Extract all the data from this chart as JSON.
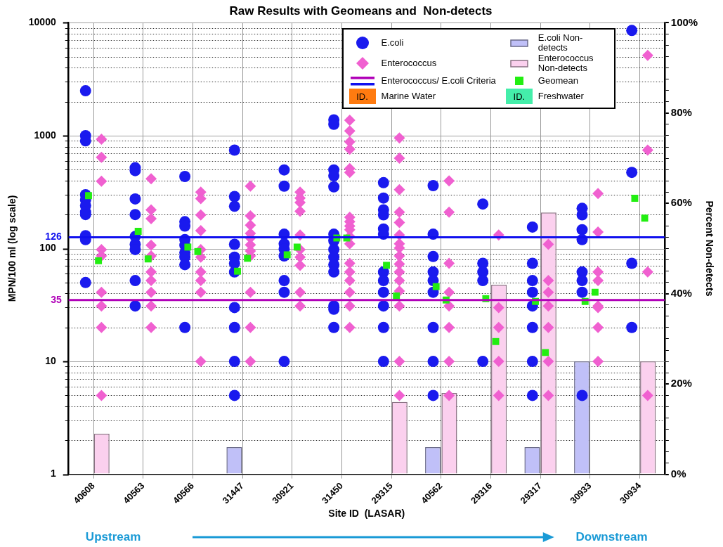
{
  "chart_data": {
    "type": "scatter",
    "title": "Raw Results with Geomeans and  Non-detects",
    "xlabel": "Site ID  (LASAR)",
    "ylabel": "MPN/100 ml (log scale)",
    "y2label": "Percent Non-detects",
    "categories": [
      "40608",
      "40563",
      "40566",
      "31447",
      "30921",
      "31450",
      "29315",
      "40562",
      "29316",
      "29317",
      "30933",
      "30934"
    ],
    "log": true,
    "grid": true,
    "legend": "top right",
    "ylim": [
      1,
      10000
    ],
    "yticks": [
      1,
      {
        "value": 2,
        "label": null
      },
      {
        "value": 3,
        "label": null
      },
      {
        "value": 4,
        "label": null
      },
      {
        "value": 5,
        "label": null
      },
      {
        "value": 6,
        "label": null
      },
      {
        "value": 7,
        "label": null
      },
      {
        "value": 8,
        "label": null
      },
      {
        "value": 9,
        "label": null
      },
      10,
      {
        "value": 20,
        "label": null
      },
      {
        "value": 30,
        "label": null
      },
      {
        "value": 40,
        "label": null
      },
      {
        "value": 50,
        "label": null
      },
      {
        "value": 60,
        "label": null
      },
      {
        "value": 70,
        "label": null
      },
      {
        "value": 80,
        "label": null
      },
      {
        "value": 90,
        "label": null
      },
      100,
      {
        "value": 200,
        "label": null
      },
      {
        "value": 300,
        "label": null
      },
      {
        "value": 400,
        "label": null
      },
      {
        "value": 500,
        "label": null
      },
      {
        "value": 600,
        "label": null
      },
      {
        "value": 700,
        "label": null
      },
      {
        "value": 800,
        "label": null
      },
      {
        "value": 900,
        "label": null
      },
      1000,
      {
        "value": 2000,
        "label": null
      },
      {
        "value": 3000,
        "label": null
      },
      {
        "value": 4000,
        "label": null
      },
      {
        "value": 5000,
        "label": null
      },
      {
        "value": 6000,
        "label": null
      },
      {
        "value": 7000,
        "label": null
      },
      {
        "value": 8000,
        "label": null
      },
      {
        "value": 9000,
        "label": null
      },
      10000
    ],
    "y2lim": [
      0,
      100
    ],
    "y2ticks": [
      {
        "value": 0,
        "label": "0%"
      },
      {
        "value": 2.5,
        "label": null
      },
      {
        "value": 5,
        "label": null
      },
      {
        "value": 7.5,
        "label": null
      },
      {
        "value": 10,
        "label": null
      },
      {
        "value": 12.5,
        "label": null
      },
      {
        "value": 15,
        "label": null
      },
      {
        "value": 17.5,
        "label": null
      },
      {
        "value": 20,
        "label": "20%"
      },
      {
        "value": 22.5,
        "label": null
      },
      {
        "value": 25,
        "label": null
      },
      {
        "value": 27.5,
        "label": null
      },
      {
        "value": 30,
        "label": null
      },
      {
        "value": 32.5,
        "label": null
      },
      {
        "value": 35,
        "label": null
      },
      {
        "value": 37.5,
        "label": null
      },
      {
        "value": 40,
        "label": "40%"
      },
      {
        "value": 42.5,
        "label": null
      },
      {
        "value": 45,
        "label": null
      },
      {
        "value": 47.5,
        "label": null
      },
      {
        "value": 50,
        "label": null
      },
      {
        "value": 52.5,
        "label": null
      },
      {
        "value": 55,
        "label": null
      },
      {
        "value": 57.5,
        "label": null
      },
      {
        "value": 60,
        "label": "60%"
      },
      {
        "value": 62.5,
        "label": null
      },
      {
        "value": 65,
        "label": null
      },
      {
        "value": 67.5,
        "label": null
      },
      {
        "value": 70,
        "label": null
      },
      {
        "value": 72.5,
        "label": null
      },
      {
        "value": 75,
        "label": null
      },
      {
        "value": 77.5,
        "label": null
      },
      {
        "value": 80,
        "label": "80%"
      },
      {
        "value": 82.5,
        "label": null
      },
      {
        "value": 85,
        "label": null
      },
      {
        "value": 87.5,
        "label": null
      },
      {
        "value": 90,
        "label": null
      },
      {
        "value": 92.5,
        "label": null
      },
      {
        "value": 95,
        "label": null
      },
      {
        "value": 97.5,
        "label": null
      },
      {
        "value": 100,
        "label": "100%"
      }
    ],
    "ref_lines": [
      {
        "axis": "y",
        "value": 126,
        "label": "126",
        "color": "#1010ee"
      },
      {
        "axis": "y",
        "value": 35,
        "label": "35",
        "color": "#b000b8"
      }
    ],
    "annotations": [
      "Upstream",
      "Downstream",
      "Enterococcus/ E.coli Criteria",
      "ID.",
      "Marine Water",
      "ID.",
      "Freshwater"
    ],
    "series": [
      {
        "name": "E.coli",
        "marker": "circle",
        "color": "#1a1aee",
        "x": [
          "40608",
          "40608",
          "40608",
          "40608",
          "40608",
          "40608",
          "40608",
          "40608",
          "40608",
          "40608",
          "40608",
          "40563",
          "40563",
          "40563",
          "40563",
          "40563",
          "40563",
          "40563",
          "40563",
          "40563",
          "40566",
          "40566",
          "40566",
          "40566",
          "40566",
          "40566",
          "40566",
          "40566",
          "40566",
          "31447",
          "31447",
          "31447",
          "31447",
          "31447",
          "31447",
          "31447",
          "31447",
          "31447",
          "31447",
          "31447",
          "30921",
          "30921",
          "30921",
          "30921",
          "30921",
          "30921",
          "30921",
          "30921",
          "30921",
          "31450",
          "31450",
          "31450",
          "31450",
          "31450",
          "31450",
          "31450",
          "31450",
          "31450",
          "31450",
          "31450",
          "31450",
          "31450",
          "31450",
          "29315",
          "29315",
          "29315",
          "29315",
          "29315",
          "29315",
          "29315",
          "29315",
          "29315",
          "29315",
          "29315",
          "29315",
          "40562",
          "40562",
          "40562",
          "40562",
          "40562",
          "40562",
          "40562",
          "40562",
          "40562",
          "29316",
          "29316",
          "29316",
          "29316",
          "29316",
          "29317",
          "29317",
          "29317",
          "29317",
          "29317",
          "29317",
          "29317",
          "29317",
          "30933",
          "30933",
          "30933",
          "30933",
          "30933",
          "30933",
          "30933",
          "30933",
          "30934",
          "30934",
          "30934",
          "30934"
        ],
        "values": [
          2500,
          1000,
          900,
          300,
          270,
          240,
          210,
          200,
          130,
          120,
          50,
          520,
          490,
          275,
          200,
          128,
          109,
          98,
          52,
          31,
          435,
          173,
          158,
          120,
          107,
          92,
          84,
          72,
          20,
          745,
          289,
          237,
          109,
          84,
          74,
          62,
          30,
          20,
          10,
          5,
          497,
          357,
          134,
          110,
          99,
          86,
          52,
          41,
          10,
          1380,
          1260,
          497,
          441,
          352,
          134,
          117,
          98,
          84,
          72,
          62,
          31,
          29,
          20,
          383,
          280,
          220,
          199,
          149,
          134,
          62,
          52,
          41,
          31,
          20,
          10,
          361,
          134,
          85,
          62,
          52,
          41,
          20,
          10,
          5,
          248,
          74,
          62,
          52,
          10,
          155,
          74,
          52,
          41,
          31,
          20,
          10,
          5,
          227,
          199,
          147,
          120,
          62,
          52,
          41,
          5,
          8550,
          473,
          74,
          20
        ]
      },
      {
        "name": "Enterococcus",
        "marker": "diamond",
        "color": "#f060d0",
        "x": [
          "40608",
          "40608",
          "40608",
          "40608",
          "40608",
          "40608",
          "40608",
          "40608",
          "40608",
          "40563",
          "40563",
          "40563",
          "40563",
          "40563",
          "40563",
          "40563",
          "40563",
          "40563",
          "40563",
          "40566",
          "40566",
          "40566",
          "40566",
          "40566",
          "40566",
          "40566",
          "40566",
          "40566",
          "40566",
          "31447",
          "31447",
          "31447",
          "31447",
          "31447",
          "31447",
          "31447",
          "31447",
          "31447",
          "31447",
          "31447",
          "30921",
          "30921",
          "30921",
          "30921",
          "30921",
          "30921",
          "30921",
          "30921",
          "30921",
          "30921",
          "31450",
          "31450",
          "31450",
          "31450",
          "31450",
          "31450",
          "31450",
          "31450",
          "31450",
          "31450",
          "31450",
          "31450",
          "31450",
          "31450",
          "31450",
          "31450",
          "31450",
          "31450",
          "29315",
          "29315",
          "29315",
          "29315",
          "29315",
          "29315",
          "29315",
          "29315",
          "29315",
          "29315",
          "29315",
          "29315",
          "29315",
          "29315",
          "29315",
          "29315",
          "40562",
          "40562",
          "40562",
          "40562",
          "40562",
          "40562",
          "40562",
          "40562",
          "29316",
          "29316",
          "29316",
          "29316",
          "29316",
          "29317",
          "29317",
          "29317",
          "29317",
          "29317",
          "29317",
          "29317",
          "30933",
          "30933",
          "30933",
          "30933",
          "30933",
          "30933",
          "30933",
          "30933",
          "30934",
          "30934",
          "30934",
          "30934"
        ],
        "values": [
          930,
          644,
          395,
          98,
          86,
          41,
          31,
          20,
          5,
          415,
          220,
          184,
          107,
          86,
          62,
          52,
          41,
          31,
          20,
          316,
          277,
          198,
          144,
          98,
          84,
          62,
          52,
          41,
          10,
          357,
          195,
          161,
          136,
          124,
          108,
          95,
          86,
          41,
          20,
          10,
          316,
          280,
          256,
          214,
          132,
          98,
          84,
          71,
          41,
          31,
          1370,
          1100,
          881,
          759,
          512,
          473,
          189,
          173,
          158,
          147,
          128,
          110,
          74,
          62,
          52,
          41,
          31,
          20,
          953,
          632,
          332,
          210,
          170,
          132,
          110,
          101,
          86,
          73,
          62,
          52,
          42,
          31,
          10,
          5,
          398,
          210,
          74,
          41,
          31,
          20,
          10,
          5,
          132,
          30,
          20,
          10,
          5,
          109,
          52,
          41,
          31,
          20,
          10,
          5,
          307,
          140,
          62,
          52,
          31,
          30,
          20,
          10,
          5150,
          745,
          62,
          5
        ]
      },
      {
        "name": "E.coli Non-detects",
        "type": "bar",
        "axis": "y2",
        "color": "#c0c0f8",
        "values": [
          null,
          null,
          null,
          6,
          null,
          null,
          null,
          6,
          null,
          6,
          25,
          null
        ]
      },
      {
        "name": "Enterococcus Non-detects",
        "type": "bar",
        "axis": "y2",
        "color": "#fbd0ee",
        "values": [
          9,
          null,
          null,
          null,
          null,
          null,
          16,
          18,
          42,
          58,
          null,
          25
        ]
      },
      {
        "name": "Geomean",
        "marker": "square",
        "color": "#22ee11",
        "values": [
          294,
          142,
          103,
          63,
          88,
          124,
          71,
          46,
          36,
          34,
          34,
          279
        ]
      },
      {
        "marker": "square",
        "color": "#22ee11",
        "values": [
          78,
          81,
          94,
          82,
          103,
          124,
          38,
          35,
          15,
          12,
          41,
          186
        ]
      }
    ]
  }
}
